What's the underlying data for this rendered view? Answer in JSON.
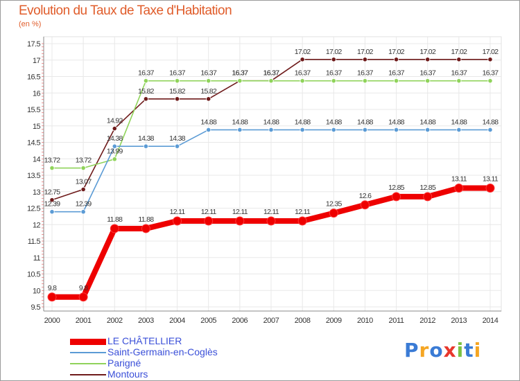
{
  "header": {
    "title": "Evolution du Taux de Taxe d'Habitation",
    "subtitle": "(en %)"
  },
  "logo": {
    "text": "Proxiti",
    "letters": [
      {
        "ch": "P",
        "color": "#3a7bd5"
      },
      {
        "ch": "r",
        "color": "#f5a623"
      },
      {
        "ch": "o",
        "color": "#3a7bd5"
      },
      {
        "ch": "x",
        "color": "#e8372c"
      },
      {
        "ch": "i",
        "color": "#7cc242"
      },
      {
        "ch": "t",
        "color": "#3a7bd5"
      },
      {
        "ch": "i",
        "color": "#f5a623"
      }
    ]
  },
  "chart_data": {
    "type": "line",
    "title": "Evolution du Taux de Taxe d'Habitation",
    "ylabel": "(en %)",
    "xlabel": "",
    "x": [
      "2000",
      "2001",
      "2002",
      "2003",
      "2004",
      "2005",
      "2006",
      "2007",
      "2008",
      "2009",
      "2010",
      "2011",
      "2012",
      "2013",
      "2014"
    ],
    "ylim": [
      9.5,
      17.5
    ],
    "yticks": [
      "9.5",
      "10",
      "10.5",
      "11",
      "11.5",
      "12",
      "12.5",
      "13",
      "13.5",
      "14",
      "14.5",
      "15",
      "15.5",
      "16",
      "16.5",
      "17",
      "17.5"
    ],
    "grid": true,
    "legend_position": "bottom-left",
    "series": [
      {
        "name": "Montours",
        "color": "#6e1a1a",
        "values": [
          12.75,
          13.07,
          14.92,
          15.82,
          15.82,
          15.82,
          16.37,
          16.37,
          17.02,
          17.02,
          17.02,
          17.02,
          17.02,
          17.02,
          17.02
        ],
        "labels": [
          "12.75",
          "13.07",
          "14.92",
          "15.82",
          "15.82",
          "15.82",
          "16.37",
          "16.37",
          "17.02",
          "17.02",
          "17.02",
          "17.02",
          "17.02",
          "17.02",
          "17.02"
        ]
      },
      {
        "name": "Parigné",
        "color": "#8fd35a",
        "values": [
          13.72,
          13.72,
          13.99,
          16.37,
          16.37,
          16.37,
          16.37,
          16.37,
          16.37,
          16.37,
          16.37,
          16.37,
          16.37,
          16.37,
          16.37
        ],
        "labels": [
          "13.72",
          "13.72",
          "13.99",
          "16.37",
          "16.37",
          "16.37",
          "16.37",
          "16.37",
          "16.37",
          "16.37",
          "16.37",
          "16.37",
          "16.37",
          "16.37",
          "16.37"
        ]
      },
      {
        "name": "Saint-Germain-en-Coglès",
        "color": "#5b9bd5",
        "values": [
          12.39,
          12.39,
          14.38,
          14.38,
          14.38,
          14.88,
          14.88,
          14.88,
          14.88,
          14.88,
          14.88,
          14.88,
          14.88,
          14.88,
          14.88
        ],
        "labels": [
          "12.39",
          "12.39",
          "14.38",
          "14.38",
          "14.38",
          "14.88",
          "14.88",
          "14.88",
          "14.88",
          "14.88",
          "14.88",
          "14.88",
          "14.88",
          "14.88",
          "14.88"
        ]
      },
      {
        "name": "LE CHÂTELLIER",
        "color": "#ee0000",
        "values": [
          9.8,
          9.8,
          11.88,
          11.88,
          12.11,
          12.11,
          12.11,
          12.11,
          12.11,
          12.35,
          12.6,
          12.85,
          12.85,
          13.11,
          13.11
        ],
        "labels": [
          "9.8",
          "9.8",
          "11.88",
          "11.88",
          "12.11",
          "12.11",
          "12.11",
          "12.11",
          "12.11",
          "12.35",
          "12.6",
          "12.85",
          "12.85",
          "13.11",
          "13.11"
        ]
      }
    ],
    "legend": [
      {
        "name": "LE CHÂTELLIER",
        "color": "#ee0000"
      },
      {
        "name": "Saint-Germain-en-Coglès",
        "color": "#5b9bd5"
      },
      {
        "name": "Parigné",
        "color": "#8fd35a"
      },
      {
        "name": "Montours",
        "color": "#6e1a1a"
      }
    ]
  }
}
